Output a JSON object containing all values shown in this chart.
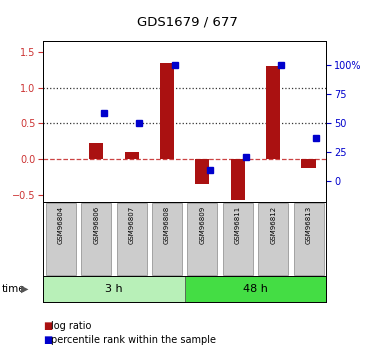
{
  "title": "GDS1679 / 677",
  "samples": [
    "GSM96804",
    "GSM96806",
    "GSM96807",
    "GSM96808",
    "GSM96809",
    "GSM96811",
    "GSM96812",
    "GSM96813"
  ],
  "log_ratio": [
    0.0,
    0.22,
    0.1,
    1.35,
    -0.35,
    -0.57,
    1.3,
    -0.13
  ],
  "percentile_rank": [
    null,
    58.0,
    50.0,
    100.0,
    9.0,
    20.0,
    100.0,
    37.0
  ],
  "groups": [
    {
      "label": "3 h",
      "start": 0,
      "end": 4,
      "color": "#b8f0b8"
    },
    {
      "label": "48 h",
      "start": 4,
      "end": 8,
      "color": "#44dd44"
    }
  ],
  "bar_color": "#aa1111",
  "dot_color": "#0000cc",
  "ylim_left": [
    -0.6,
    1.65
  ],
  "ylim_right": [
    -18.18,
    120.0
  ],
  "yticks_left": [
    -0.5,
    0.0,
    0.5,
    1.0,
    1.5
  ],
  "yticks_right": [
    0,
    25,
    50,
    75,
    100
  ],
  "hlines_dotted": [
    0.5,
    1.0
  ],
  "hline_zero": 0.0,
  "background_color": "#ffffff"
}
